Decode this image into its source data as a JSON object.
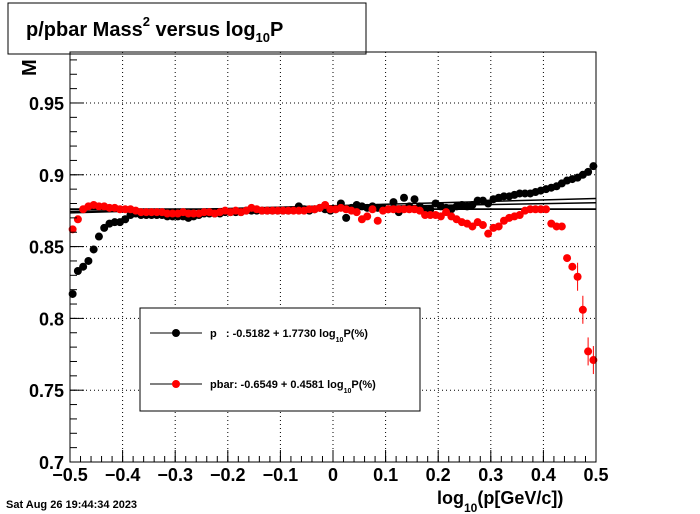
{
  "title": {
    "main": "p/pbar Mass",
    "sup": "2",
    "mid": " versus log",
    "sub": "10",
    "end": "P"
  },
  "yaxis_label_fragment": "M",
  "timestamp": "Sat Aug 26 19:44:34 2023",
  "xlabel": {
    "pre": "log",
    "sub": "10",
    "post": "(p[GeV/c])"
  },
  "legend": [
    {
      "pre": "p   : -0.5182 + 1.7730 log",
      "sub": "10",
      "post": "P(%)"
    },
    {
      "pre": "pbar: -0.6549 + 0.4581 log",
      "sub": "10",
      "post": "P(%)"
    }
  ],
  "colors": {
    "p": "#000000",
    "pbar": "#ff0000",
    "frame": "#000000",
    "grid": "#000000"
  },
  "chart_data": {
    "type": "scatter",
    "xlim": [
      -0.5,
      0.5
    ],
    "ylim": [
      0.7,
      0.9855
    ],
    "xticks": [
      "−0.5",
      "−0.4",
      "−0.3",
      "−0.2",
      "−0.1",
      "0",
      "0.1",
      "0.2",
      "0.3",
      "0.4",
      "0.5"
    ],
    "yticks": [
      "0.7",
      "0.75",
      "0.8",
      "0.85",
      "0.9",
      "0.95"
    ],
    "xtick_values": [
      -0.5,
      -0.4,
      -0.3,
      -0.2,
      -0.1,
      0,
      0.1,
      0.2,
      0.3,
      0.4,
      0.5
    ],
    "ytick_values": [
      0.7,
      0.75,
      0.8,
      0.85,
      0.9,
      0.95
    ],
    "grid": true,
    "series": [
      {
        "name": "p",
        "color": "#000000",
        "points": [
          [
            -0.495,
            0.817
          ],
          [
            -0.485,
            0.833
          ],
          [
            -0.475,
            0.836
          ],
          [
            -0.465,
            0.84
          ],
          [
            -0.455,
            0.848
          ],
          [
            -0.445,
            0.857
          ],
          [
            -0.435,
            0.863
          ],
          [
            -0.425,
            0.866
          ],
          [
            -0.415,
            0.867
          ],
          [
            -0.405,
            0.867
          ],
          [
            -0.395,
            0.869
          ],
          [
            -0.385,
            0.872
          ],
          [
            -0.375,
            0.873
          ],
          [
            -0.365,
            0.872
          ],
          [
            -0.355,
            0.872
          ],
          [
            -0.345,
            0.872
          ],
          [
            -0.335,
            0.872
          ],
          [
            -0.325,
            0.872
          ],
          [
            -0.315,
            0.871
          ],
          [
            -0.305,
            0.871
          ],
          [
            -0.295,
            0.871
          ],
          [
            -0.285,
            0.871
          ],
          [
            -0.275,
            0.87
          ],
          [
            -0.265,
            0.871
          ],
          [
            -0.255,
            0.872
          ],
          [
            -0.245,
            0.873
          ],
          [
            -0.235,
            0.873
          ],
          [
            -0.225,
            0.873
          ],
          [
            -0.215,
            0.873
          ],
          [
            -0.205,
            0.874
          ],
          [
            -0.195,
            0.874
          ],
          [
            -0.185,
            0.874
          ],
          [
            -0.175,
            0.874
          ],
          [
            -0.165,
            0.875
          ],
          [
            -0.155,
            0.875
          ],
          [
            -0.145,
            0.875
          ],
          [
            -0.135,
            0.875
          ],
          [
            -0.125,
            0.875
          ],
          [
            -0.115,
            0.875
          ],
          [
            -0.105,
            0.875
          ],
          [
            -0.095,
            0.875
          ],
          [
            -0.085,
            0.875
          ],
          [
            -0.065,
            0.878
          ],
          [
            -0.055,
            0.876
          ],
          [
            -0.045,
            0.875
          ],
          [
            -0.035,
            0.876
          ],
          [
            -0.025,
            0.877
          ],
          [
            -0.015,
            0.876
          ],
          [
            -0.005,
            0.875
          ],
          [
            0.005,
            0.876
          ],
          [
            0.015,
            0.88
          ],
          [
            0.025,
            0.87
          ],
          [
            0.035,
            0.877
          ],
          [
            0.045,
            0.879
          ],
          [
            0.055,
            0.878
          ],
          [
            0.065,
            0.877
          ],
          [
            0.075,
            0.878
          ],
          [
            0.085,
            0.877
          ],
          [
            0.095,
            0.877
          ],
          [
            0.105,
            0.876
          ],
          [
            0.115,
            0.881
          ],
          [
            0.125,
            0.874
          ],
          [
            0.135,
            0.884
          ],
          [
            0.145,
            0.878
          ],
          [
            0.155,
            0.883
          ],
          [
            0.165,
            0.878
          ],
          [
            0.175,
            0.876
          ],
          [
            0.185,
            0.876
          ],
          [
            0.195,
            0.88
          ],
          [
            0.205,
            0.878
          ],
          [
            0.215,
            0.877
          ],
          [
            0.225,
            0.876
          ],
          [
            0.235,
            0.878
          ],
          [
            0.245,
            0.879
          ],
          [
            0.255,
            0.878
          ],
          [
            0.265,
            0.879
          ],
          [
            0.275,
            0.882
          ],
          [
            0.285,
            0.882
          ],
          [
            0.295,
            0.88
          ],
          [
            0.305,
            0.883
          ],
          [
            0.315,
            0.884
          ],
          [
            0.325,
            0.885
          ],
          [
            0.335,
            0.885
          ],
          [
            0.345,
            0.886
          ],
          [
            0.355,
            0.887
          ],
          [
            0.365,
            0.887
          ],
          [
            0.375,
            0.887
          ],
          [
            0.385,
            0.888
          ],
          [
            0.395,
            0.889
          ],
          [
            0.405,
            0.89
          ],
          [
            0.415,
            0.891
          ],
          [
            0.425,
            0.892
          ],
          [
            0.435,
            0.894
          ],
          [
            0.445,
            0.896
          ],
          [
            0.455,
            0.897
          ],
          [
            0.465,
            0.898
          ],
          [
            0.475,
            0.9
          ],
          [
            0.485,
            0.902
          ],
          [
            0.495,
            0.906
          ]
        ]
      },
      {
        "name": "pbar",
        "color": "#ff0000",
        "points": [
          [
            -0.495,
            0.862
          ],
          [
            -0.485,
            0.869
          ],
          [
            -0.475,
            0.876
          ],
          [
            -0.465,
            0.878
          ],
          [
            -0.455,
            0.879
          ],
          [
            -0.445,
            0.878
          ],
          [
            -0.435,
            0.878
          ],
          [
            -0.425,
            0.877
          ],
          [
            -0.415,
            0.877
          ],
          [
            -0.405,
            0.876
          ],
          [
            -0.395,
            0.876
          ],
          [
            -0.385,
            0.876
          ],
          [
            -0.375,
            0.875
          ],
          [
            -0.365,
            0.874
          ],
          [
            -0.355,
            0.874
          ],
          [
            -0.345,
            0.874
          ],
          [
            -0.335,
            0.874
          ],
          [
            -0.325,
            0.874
          ],
          [
            -0.315,
            0.873
          ],
          [
            -0.305,
            0.873
          ],
          [
            -0.295,
            0.873
          ],
          [
            -0.285,
            0.874
          ],
          [
            -0.275,
            0.873
          ],
          [
            -0.265,
            0.873
          ],
          [
            -0.255,
            0.873
          ],
          [
            -0.245,
            0.874
          ],
          [
            -0.235,
            0.874
          ],
          [
            -0.225,
            0.873
          ],
          [
            -0.215,
            0.874
          ],
          [
            -0.205,
            0.875
          ],
          [
            -0.195,
            0.874
          ],
          [
            -0.185,
            0.875
          ],
          [
            -0.175,
            0.874
          ],
          [
            -0.165,
            0.875
          ],
          [
            -0.155,
            0.877
          ],
          [
            -0.145,
            0.876
          ],
          [
            -0.135,
            0.875
          ],
          [
            -0.125,
            0.875
          ],
          [
            -0.115,
            0.875
          ],
          [
            -0.105,
            0.875
          ],
          [
            -0.095,
            0.875
          ],
          [
            -0.085,
            0.875
          ],
          [
            -0.075,
            0.875
          ],
          [
            -0.065,
            0.875
          ],
          [
            -0.055,
            0.875
          ],
          [
            -0.045,
            0.876
          ],
          [
            -0.035,
            0.876
          ],
          [
            -0.025,
            0.877
          ],
          [
            -0.015,
            0.879
          ],
          [
            -0.005,
            0.876
          ],
          [
            0.005,
            0.876
          ],
          [
            0.015,
            0.877
          ],
          [
            0.025,
            0.876
          ],
          [
            0.035,
            0.875
          ],
          [
            0.045,
            0.874
          ],
          [
            0.055,
            0.869
          ],
          [
            0.065,
            0.871
          ],
          [
            0.075,
            0.876
          ],
          [
            0.085,
            0.868
          ],
          [
            0.095,
            0.875
          ],
          [
            0.105,
            0.876
          ],
          [
            0.115,
            0.876
          ],
          [
            0.125,
            0.876
          ],
          [
            0.135,
            0.876
          ],
          [
            0.145,
            0.876
          ],
          [
            0.155,
            0.876
          ],
          [
            0.165,
            0.875
          ],
          [
            0.175,
            0.872
          ],
          [
            0.185,
            0.872
          ],
          [
            0.195,
            0.872
          ],
          [
            0.205,
            0.871
          ],
          [
            0.215,
            0.874
          ],
          [
            0.225,
            0.871
          ],
          [
            0.235,
            0.869
          ],
          [
            0.245,
            0.867
          ],
          [
            0.255,
            0.866
          ],
          [
            0.265,
            0.864
          ],
          [
            0.275,
            0.867
          ],
          [
            0.285,
            0.865
          ],
          [
            0.295,
            0.859
          ],
          [
            0.305,
            0.863
          ],
          [
            0.315,
            0.864
          ],
          [
            0.325,
            0.868
          ],
          [
            0.335,
            0.87
          ],
          [
            0.345,
            0.871
          ],
          [
            0.355,
            0.872
          ],
          [
            0.365,
            0.875
          ],
          [
            0.375,
            0.876
          ],
          [
            0.385,
            0.876
          ],
          [
            0.395,
            0.876
          ],
          [
            0.405,
            0.876
          ],
          [
            0.415,
            0.866
          ],
          [
            0.425,
            0.864
          ],
          [
            0.435,
            0.864
          ],
          [
            0.445,
            0.842
          ],
          [
            0.455,
            0.836
          ],
          [
            0.465,
            0.829
          ],
          [
            0.475,
            0.806
          ],
          [
            0.485,
            0.777
          ],
          [
            0.495,
            0.771
          ]
        ]
      }
    ],
    "fit_lines": [
      {
        "series": "p",
        "color": "#000000",
        "x": [
          -0.5,
          0.5
        ],
        "y": [
          0.8735,
          0.8835
        ]
      },
      {
        "series": "p-horizontal",
        "color": "#000000",
        "x": [
          -0.5,
          0.5
        ],
        "y": [
          0.8762,
          0.8762
        ]
      },
      {
        "series": "pbar",
        "color": "#000000",
        "x": [
          -0.5,
          0.5
        ],
        "y": [
          0.8745,
          0.8805
        ]
      },
      {
        "series": "pbar-horizontal",
        "color": "#000000",
        "x": [
          -0.5,
          0.5
        ],
        "y": [
          0.876,
          0.876
        ]
      }
    ]
  }
}
